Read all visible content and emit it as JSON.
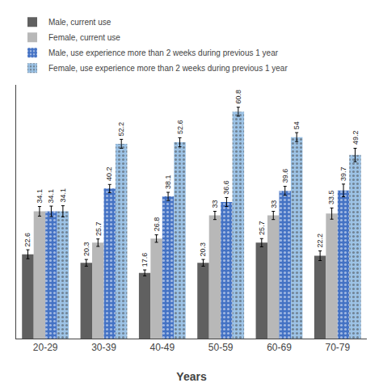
{
  "chart_data": {
    "type": "bar",
    "categories": [
      "20-29",
      "30-39",
      "40-49",
      "50-59",
      "60-69",
      "70-79"
    ],
    "series": [
      {
        "name": "Male, current use",
        "color": "#606060",
        "values": [
          22.6,
          20.3,
          17.6,
          20.3,
          25.7,
          22.2
        ],
        "errors": [
          1.2,
          0.9,
          0.8,
          0.9,
          1.1,
          1.3
        ]
      },
      {
        "name": "Female, current use",
        "color": "#b8b8b8",
        "values": [
          34.1,
          25.7,
          26.8,
          33.0,
          33.0,
          33.5
        ],
        "errors": [
          1.3,
          1.0,
          1.0,
          1.1,
          1.1,
          1.5
        ]
      },
      {
        "name": "Male, use experience more than 2 weeks during previous 1 year",
        "color": "#4472c4",
        "marker": "dots",
        "values": [
          34.1,
          40.2,
          38.1,
          36.6,
          39.6,
          39.7
        ],
        "errors": [
          1.4,
          1.1,
          1.1,
          1.2,
          1.2,
          1.7
        ]
      },
      {
        "name": "Female, use experience more than 2 weeks during previous 1 year",
        "color": "#9dc3e6",
        "marker": "dots",
        "values": [
          34.1,
          52.2,
          52.6,
          60.8,
          54.0,
          49.2
        ],
        "errors": [
          1.5,
          1.2,
          1.2,
          1.2,
          1.2,
          1.8
        ]
      }
    ],
    "xlabel": "Years",
    "ylim": [
      0,
      68
    ],
    "data_labels": true,
    "tick_labels": "x",
    "grid": false,
    "legend": "top"
  }
}
